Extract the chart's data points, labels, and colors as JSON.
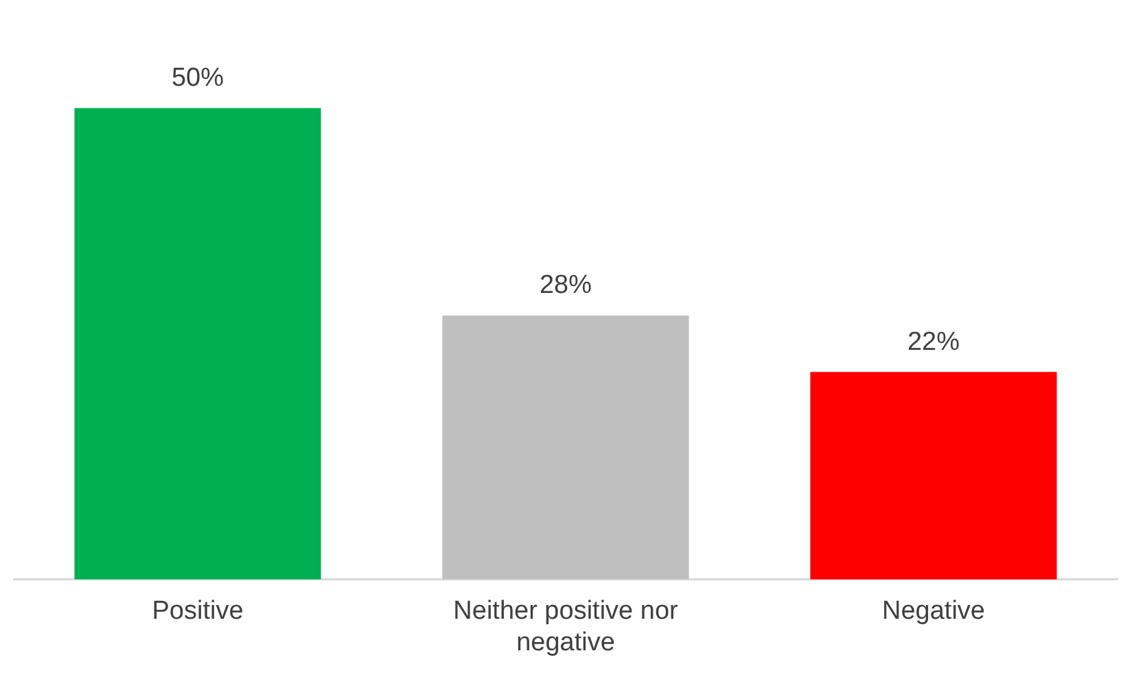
{
  "chart_data": {
    "type": "bar",
    "categories": [
      "Positive",
      "Neither positive nor negative",
      "Negative"
    ],
    "values": [
      50,
      28,
      22
    ],
    "colors": [
      "#00b050",
      "#bfbfbf",
      "#ff0000"
    ],
    "value_labels": [
      "50%",
      "28%",
      "22%"
    ],
    "grid": false,
    "legend": false
  }
}
